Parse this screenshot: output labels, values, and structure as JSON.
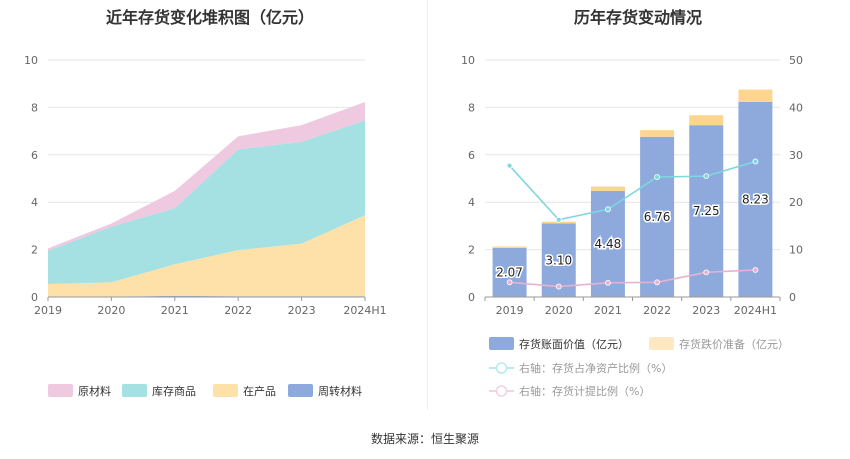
{
  "source_text": "数据来源：恒生聚源",
  "chart_data": [
    {
      "type": "area",
      "title": "近年存货变化堆积图（亿元）",
      "stacked": true,
      "x": [
        "2019",
        "2020",
        "2021",
        "2022",
        "2023",
        "2024H1"
      ],
      "ylim": [
        0,
        10
      ],
      "yticks": [
        0,
        2,
        4,
        6,
        8,
        10
      ],
      "grid": true,
      "legend_position": "bottom",
      "series": [
        {
          "name": "周转材料",
          "color": "#8eaadc",
          "values": [
            0.02,
            0.02,
            0.05,
            0.03,
            0.03,
            0.03
          ]
        },
        {
          "name": "在产品",
          "color": "#fde1a8",
          "values": [
            0.53,
            0.6,
            1.33,
            1.95,
            2.22,
            3.42
          ]
        },
        {
          "name": "库存商品",
          "color": "#a5e1e3",
          "values": [
            1.4,
            2.35,
            2.37,
            4.25,
            4.3,
            4.0
          ]
        },
        {
          "name": "原材料",
          "color": "#eec9e0",
          "values": [
            0.1,
            0.13,
            0.73,
            0.55,
            0.7,
            0.78
          ]
        }
      ],
      "legend_order": [
        "原材料",
        "库存商品",
        "在产品",
        "周转材料"
      ]
    },
    {
      "type": "bar",
      "title": "历年存货变动情况",
      "categories": [
        "2019",
        "2020",
        "2021",
        "2022",
        "2023",
        "2024H1"
      ],
      "ylim": [
        0,
        10
      ],
      "yticks": [
        0,
        2,
        4,
        6,
        8,
        10
      ],
      "y2lim": [
        0,
        50
      ],
      "y2ticks": [
        0,
        10,
        20,
        30,
        40,
        50
      ],
      "grid": true,
      "legend_position": "bottom",
      "series": [
        {
          "name": "存货账面价值（亿元）",
          "kind": "bar",
          "axis": "left",
          "color": "#8eaadc",
          "values": [
            2.07,
            3.1,
            4.48,
            6.76,
            7.25,
            8.23
          ],
          "labels": [
            "2.07",
            "3.10",
            "4.48",
            "6.76",
            "7.25",
            "8.23"
          ]
        },
        {
          "name": "存货跌价准备（亿元）",
          "kind": "bar",
          "axis": "left",
          "color": "#fdd68e",
          "stacked": true,
          "values": [
            0.06,
            0.08,
            0.18,
            0.28,
            0.42,
            0.52
          ]
        },
        {
          "name": "右轴：存货占净资产比例（%）",
          "kind": "line",
          "axis": "right",
          "color": "#7fd6df",
          "values": [
            27.7,
            16.3,
            18.5,
            25.3,
            25.5,
            28.6
          ]
        },
        {
          "name": "右轴：存货计提比例（%）",
          "kind": "line",
          "axis": "right",
          "color": "#e6b2d2",
          "values": [
            3.1,
            2.2,
            3.0,
            3.1,
            5.2,
            5.7
          ]
        }
      ]
    }
  ]
}
